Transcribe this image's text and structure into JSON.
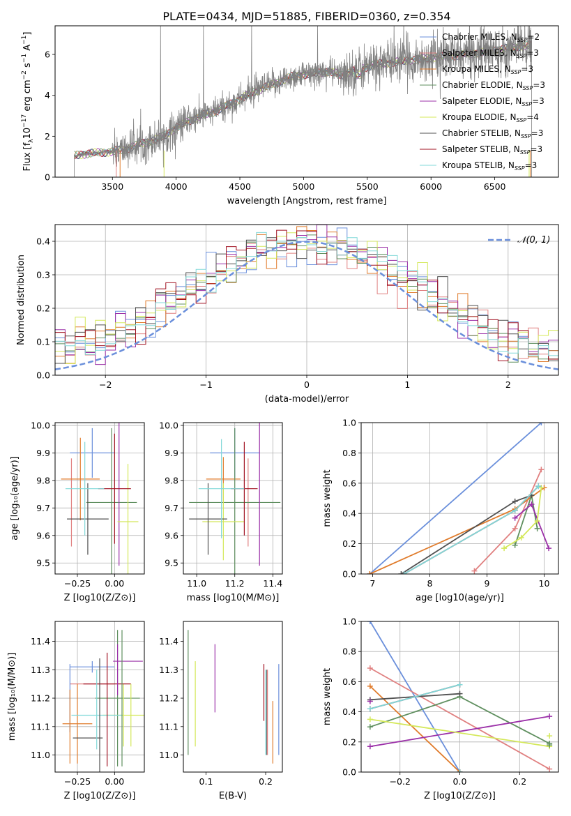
{
  "figure_title": "PLATE=0434, MJD=51885, FIBERID=0360, z=0.354",
  "colors": {
    "Chabrier MILES": "#6a8fdb",
    "Salpeter MILES": "#e08080",
    "Kroupa MILES": "#e07b2b",
    "Chabrier ELODIE": "#5f8f5f",
    "Salpeter ELODIE": "#9b30a8",
    "Kroupa ELODIE": "#d4e85a",
    "Chabrier STELIB": "#505050",
    "Salpeter STELIB": "#a01020",
    "Kroupa STELIB": "#80d8d8",
    "spectrum": "#808080",
    "gaussian": "#6a8fdb",
    "grid": "#b0b0b0"
  },
  "chart_data": [
    {
      "id": "spectrum",
      "type": "line",
      "title": "PLATE=0434, MJD=51885, FIBERID=0360, z=0.354",
      "xlabel": "wavelength [Angstrom, rest frame]",
      "ylabel": "Flux [f_λ 10^-17 erg cm^-2 s^-1 A^-1]",
      "xlim": [
        3050,
        7000
      ],
      "ylim": [
        0,
        7.4
      ],
      "xticks": [
        3500,
        4000,
        4500,
        5000,
        5500,
        6000,
        6500
      ],
      "yticks": [
        0,
        2,
        4,
        6
      ],
      "grid": false,
      "legend_position": "right",
      "legend": [
        {
          "model": "Chabrier MILES",
          "nssp": "2"
        },
        {
          "model": "Salpeter MILES",
          "nssp": "3"
        },
        {
          "model": "Kroupa MILES",
          "nssp": "3"
        },
        {
          "model": "Chabrier ELODIE",
          "nssp": "3"
        },
        {
          "model": "Salpeter ELODIE",
          "nssp": "3"
        },
        {
          "model": "Kroupa ELODIE",
          "nssp": "4"
        },
        {
          "model": "Chabrier STELIB",
          "nssp": "3"
        },
        {
          "model": "Salpeter STELIB",
          "nssp": "3"
        },
        {
          "model": "Kroupa STELIB",
          "nssp": "3"
        }
      ],
      "data_start": 3200,
      "data_end": 6790,
      "continuum_wavelength": [
        3200,
        3300,
        3400,
        3500,
        3600,
        3700,
        3800,
        3900,
        4000,
        4100,
        4200,
        4300,
        4400,
        4500,
        4600,
        4700,
        4800,
        4900,
        5000,
        5100,
        5200,
        5300,
        5400,
        5500,
        5600,
        5700,
        5800,
        5900,
        6000,
        6100,
        6200,
        6300,
        6400,
        6500,
        6600,
        6700,
        6790
      ],
      "continuum_flux": [
        1.05,
        1.15,
        1.2,
        1.25,
        1.35,
        1.6,
        1.75,
        2.0,
        2.4,
        2.75,
        3.0,
        3.2,
        3.5,
        3.8,
        4.15,
        4.4,
        4.65,
        4.9,
        5.0,
        5.1,
        5.15,
        5.0,
        5.2,
        5.4,
        5.55,
        5.6,
        5.7,
        5.75,
        5.85,
        5.9,
        5.95,
        6.05,
        6.1,
        6.2,
        6.3,
        6.4,
        6.45
      ]
    },
    {
      "id": "residuals",
      "type": "histogram",
      "xlabel": "(data-model)/error",
      "ylabel": "Normed distribution",
      "xlim": [
        -2.5,
        2.5
      ],
      "ylim": [
        0,
        0.45
      ],
      "xticks": [
        -2,
        -1,
        0,
        1,
        2
      ],
      "yticks": [
        0.0,
        0.1,
        0.2,
        0.3,
        0.4
      ],
      "grid": true,
      "legend_position": "top-right",
      "legend_label": "𝒩(0, 1)",
      "bin_width": 0.1,
      "reference_curve": "normal(0,1)"
    },
    {
      "id": "age_vs_Z",
      "type": "scatter",
      "xlabel": "Z [log10(Z/Z⊙)]",
      "ylabel": "age [log10(age/yr)]",
      "xlim": [
        -0.4,
        0.2
      ],
      "ylim": [
        9.46,
        10.01
      ],
      "xticks": [
        -0.25,
        0.0
      ],
      "xtick_labels": [
        "−0.25",
        "0.00"
      ],
      "yticks": [
        9.5,
        9.6,
        9.7,
        9.8,
        9.9,
        10.0
      ],
      "grid": true,
      "points": [
        {
          "model": "Chabrier MILES",
          "x": -0.15,
          "xerr": 0.15,
          "y": 9.9,
          "yerr": 0.09
        },
        {
          "model": "Salpeter MILES",
          "x": -0.29,
          "xerr": 0.0,
          "y": 9.72,
          "yerr": 0.16
        },
        {
          "model": "Kroupa MILES",
          "x": -0.23,
          "xerr": 0.13,
          "y": 9.805,
          "yerr": 0.15
        },
        {
          "model": "Chabrier ELODIE",
          "x": -0.02,
          "xerr": 0.17,
          "y": 9.72,
          "yerr": 0.27
        },
        {
          "model": "Salpeter ELODIE",
          "x": 0.03,
          "xerr": 0.0,
          "y": 9.77,
          "yerr": 0.28
        },
        {
          "model": "Kroupa ELODIE",
          "x": 0.09,
          "xerr": 0.07,
          "y": 9.65,
          "yerr": 0.21
        },
        {
          "model": "Chabrier STELIB",
          "x": -0.18,
          "xerr": 0.14,
          "y": 9.66,
          "yerr": 0.13
        },
        {
          "model": "Salpeter STELIB",
          "x": 0.0,
          "xerr": 0.11,
          "y": 9.77,
          "yerr": 0.2
        },
        {
          "model": "Kroupa STELIB",
          "x": -0.2,
          "xerr": 0.13,
          "y": 9.77,
          "yerr": 0.17
        }
      ]
    },
    {
      "id": "age_vs_mass",
      "type": "scatter",
      "xlabel": "mass [log10(M/M⊙)]",
      "ylabel": "",
      "xlim": [
        10.93,
        11.45
      ],
      "ylim": [
        9.46,
        10.01
      ],
      "xticks": [
        11.0,
        11.2,
        11.4
      ],
      "yticks": [
        9.5,
        9.6,
        9.7,
        9.8,
        9.9,
        10.0
      ],
      "grid": true,
      "points": [
        {
          "model": "Chabrier MILES",
          "x": 11.2,
          "xerr": 0.13,
          "y": 9.9,
          "yerr": 0.09
        },
        {
          "model": "Salpeter MILES",
          "x": 11.27,
          "xerr": 0.0,
          "y": 9.72,
          "yerr": 0.16
        },
        {
          "model": "Kroupa MILES",
          "x": 11.14,
          "xerr": 0.09,
          "y": 9.805,
          "yerr": 0.08
        },
        {
          "model": "Chabrier ELODIE",
          "x": 11.2,
          "xerr": 0.24,
          "y": 9.72,
          "yerr": 0.27
        },
        {
          "model": "Salpeter ELODIE",
          "x": 11.33,
          "xerr": 0.0,
          "y": 9.77,
          "yerr": 0.28
        },
        {
          "model": "Kroupa ELODIE",
          "x": 11.14,
          "xerr": 0.11,
          "y": 9.65,
          "yerr": 0.14
        },
        {
          "model": "Chabrier STELIB",
          "x": 11.06,
          "xerr": 0.1,
          "y": 9.66,
          "yerr": 0.13
        },
        {
          "model": "Salpeter STELIB",
          "x": 11.25,
          "xerr": 0.07,
          "y": 9.77,
          "yerr": 0.17
        },
        {
          "model": "Kroupa STELIB",
          "x": 11.13,
          "xerr": 0.12,
          "y": 9.77,
          "yerr": 0.18
        }
      ]
    },
    {
      "id": "weight_vs_age",
      "type": "line",
      "xlabel": "age [log10(age/yr)]",
      "ylabel": "mass weight",
      "xlim": [
        6.8,
        10.25
      ],
      "ylim": [
        0,
        1.0
      ],
      "xticks": [
        7,
        8,
        9,
        10
      ],
      "yticks": [
        0.0,
        0.2,
        0.4,
        0.6,
        0.8,
        1.0
      ],
      "grid": true,
      "series": [
        {
          "model": "Chabrier MILES",
          "x": [
            6.95,
            9.95
          ],
          "y": [
            0.0,
            1.0
          ]
        },
        {
          "model": "Salpeter MILES",
          "x": [
            8.78,
            9.49,
            9.95
          ],
          "y": [
            0.02,
            0.3,
            0.69
          ]
        },
        {
          "model": "Kroupa MILES",
          "x": [
            6.95,
            9.49,
            10.0
          ],
          "y": [
            0.0,
            0.43,
            0.57
          ]
        },
        {
          "model": "Chabrier ELODIE",
          "x": [
            9.49,
            9.78,
            9.88
          ],
          "y": [
            0.19,
            0.52,
            0.3
          ]
        },
        {
          "model": "Salpeter ELODIE",
          "x": [
            9.49,
            9.78,
            10.08
          ],
          "y": [
            0.37,
            0.46,
            0.17
          ]
        },
        {
          "model": "Kroupa ELODIE",
          "x": [
            9.3,
            9.6,
            9.88,
            9.95
          ],
          "y": [
            0.17,
            0.24,
            0.35,
            0.57
          ]
        },
        {
          "model": "Chabrier STELIB",
          "x": [
            7.5,
            9.49,
            9.78
          ],
          "y": [
            0.0,
            0.48,
            0.52
          ]
        },
        {
          "model": "Salpeter STELIB",
          "x": [
            7.55,
            9.49,
            9.9
          ],
          "y": [
            0.0,
            0.42,
            0.58
          ]
        },
        {
          "model": "Kroupa STELIB",
          "x": [
            7.55,
            9.49,
            9.9
          ],
          "y": [
            0.0,
            0.42,
            0.58
          ]
        }
      ]
    },
    {
      "id": "mass_vs_Z",
      "type": "scatter",
      "xlabel": "Z [log10(Z/Z⊙)]",
      "ylabel": "mass [log10(M/M⊙)]",
      "xlim": [
        -0.4,
        0.2
      ],
      "ylim": [
        10.94,
        11.47
      ],
      "xticks": [
        -0.25,
        0.0
      ],
      "xtick_labels": [
        "−0.25",
        "0.00"
      ],
      "yticks": [
        11.0,
        11.1,
        11.2,
        11.3,
        11.4
      ],
      "grid": true,
      "points": [
        {
          "model": "Chabrier MILES",
          "x": -0.15,
          "xerr": 0.15,
          "y": 11.31,
          "yerr": 0.02
        },
        {
          "model": "Salpeter MILES",
          "x": -0.15,
          "xerr": 0.15,
          "y": 11.25,
          "yerr": 0.0
        },
        {
          "model": "Kroupa MILES",
          "x": -0.25,
          "xerr": 0.1,
          "y": 11.11,
          "yerr": 0.14
        },
        {
          "model": "Chabrier ELODIE",
          "x": 0.02,
          "xerr": 0.15,
          "y": 11.2,
          "yerr": 0.24
        },
        {
          "model": "Salpeter ELODIE",
          "x": 0.09,
          "xerr": 0.1,
          "y": 11.33,
          "yerr": 0.0
        },
        {
          "model": "Kroupa ELODIE",
          "x": 0.06,
          "xerr": 0.14,
          "y": 11.14,
          "yerr": 0.11
        },
        {
          "model": "Chabrier STELIB",
          "x": -0.18,
          "xerr": 0.1,
          "y": 11.06,
          "yerr": 0.0
        },
        {
          "model": "Salpeter STELIB",
          "x": -0.05,
          "xerr": 0.16,
          "y": 11.25,
          "yerr": 0.0
        },
        {
          "model": "Kroupa STELIB",
          "x": -0.12,
          "xerr": 0.17,
          "y": 11.14,
          "yerr": 0.0
        }
      ],
      "vertical_bars": [
        {
          "model": "Chabrier MILES",
          "x": -0.3,
          "y": 11.2,
          "yerr": 0.12
        },
        {
          "model": "Kroupa MILES",
          "x": -0.3,
          "y": 11.1,
          "yerr": 0.13
        },
        {
          "model": "Chabrier STELIB",
          "x": -0.1,
          "y": 11.14,
          "yerr": 0.2
        },
        {
          "model": "Salpeter STELIB",
          "x": -0.05,
          "y": 11.16,
          "yerr": 0.2
        },
        {
          "model": "Chabrier ELODIE",
          "x": 0.05,
          "y": 11.2,
          "yerr": 0.24
        },
        {
          "model": "Kroupa STELIB",
          "x": -0.12,
          "y": 11.16,
          "yerr": 0.14
        },
        {
          "model": "Kroupa ELODIE",
          "x": 0.11,
          "y": 11.14,
          "yerr": 0.11
        },
        {
          "model": "Salpeter ELODIE",
          "x": 0.02,
          "y": 11.3,
          "yerr": 0.09
        }
      ]
    },
    {
      "id": "mass_vs_ebv",
      "type": "scatter",
      "xlabel": "E(B-V)",
      "ylabel": "",
      "xlim": [
        0.062,
        0.228
      ],
      "ylim": [
        10.94,
        11.47
      ],
      "xticks": [
        0.1,
        0.2
      ],
      "yticks": [
        11.0,
        11.1,
        11.2,
        11.3,
        11.4
      ],
      "grid": false,
      "points": [
        {
          "model": "Chabrier ELODIE",
          "x": 0.07,
          "y": 11.22,
          "yerr": 0.22
        },
        {
          "model": "Kroupa ELODIE",
          "x": 0.082,
          "y": 11.18,
          "yerr": 0.15
        },
        {
          "model": "Salpeter ELODIE",
          "x": 0.115,
          "y": 11.27,
          "yerr": 0.12
        },
        {
          "model": "Salpeter STELIB",
          "x": 0.197,
          "y": 11.22,
          "yerr": 0.1
        },
        {
          "model": "Kroupa STELIB",
          "x": 0.2,
          "y": 11.15,
          "yerr": 0.15
        },
        {
          "model": "Chabrier STELIB",
          "x": 0.202,
          "y": 11.15,
          "yerr": 0.15
        },
        {
          "model": "Salpeter MILES",
          "x": 0.203,
          "y": 11.15,
          "yerr": 0.15
        },
        {
          "model": "Kroupa MILES",
          "x": 0.212,
          "y": 11.08,
          "yerr": 0.11
        },
        {
          "model": "Chabrier MILES",
          "x": 0.222,
          "y": 11.16,
          "yerr": 0.16
        }
      ]
    },
    {
      "id": "weight_vs_Z",
      "type": "line",
      "xlabel": "Z [log10(Z/Z⊙)]",
      "ylabel": "mass weight",
      "xlim": [
        -0.33,
        0.33
      ],
      "ylim": [
        0,
        1.0
      ],
      "xticks": [
        -0.2,
        0.0,
        0.2
      ],
      "xtick_labels": [
        "−0.2",
        "0.0",
        "0.2"
      ],
      "yticks": [
        0.0,
        0.2,
        0.4,
        0.6,
        0.8,
        1.0
      ],
      "grid": true,
      "series": [
        {
          "model": "Chabrier MILES",
          "x": [
            -0.3,
            0.0
          ],
          "y": [
            1.0,
            0.0
          ]
        },
        {
          "model": "Salpeter MILES",
          "x": [
            -0.3,
            0.3
          ],
          "y": [
            0.69,
            0.02
          ]
        },
        {
          "model": "Kroupa MILES",
          "x": [
            -0.3,
            0.0
          ],
          "y": [
            0.57,
            0.0
          ]
        },
        {
          "model": "Chabrier ELODIE",
          "x": [
            -0.3,
            0.0,
            0.3
          ],
          "y": [
            0.3,
            0.5,
            0.19
          ]
        },
        {
          "model": "Salpeter ELODIE",
          "x": [
            -0.3,
            0.3
          ],
          "y": [
            0.17,
            0.37
          ]
        },
        {
          "model": "Kroupa ELODIE",
          "x": [
            -0.3,
            0.3
          ],
          "y": [
            0.35,
            0.17
          ]
        },
        {
          "model": "Chabrier STELIB",
          "x": [
            -0.3,
            0.0
          ],
          "y": [
            0.48,
            0.52
          ]
        },
        {
          "model": "Salpeter STELIB",
          "x": [
            -0.3,
            0.0
          ],
          "y": [
            0.42,
            0.58
          ]
        },
        {
          "model": "Kroupa STELIB",
          "x": [
            -0.3,
            0.0
          ],
          "y": [
            0.42,
            0.58
          ]
        }
      ],
      "markers": [
        {
          "model": "Salpeter ELODIE",
          "x": -0.3,
          "y": 0.47
        },
        {
          "model": "Kroupa ELODIE",
          "x": 0.3,
          "y": 0.24
        },
        {
          "model": "Chabrier ELODIE",
          "x": 0.3,
          "y": 0.18
        },
        {
          "model": "Chabrier STELIB",
          "x": 0.0,
          "y": 0.0
        },
        {
          "model": "Kroupa STELIB",
          "x": 0.0,
          "y": 0.0
        }
      ]
    }
  ]
}
